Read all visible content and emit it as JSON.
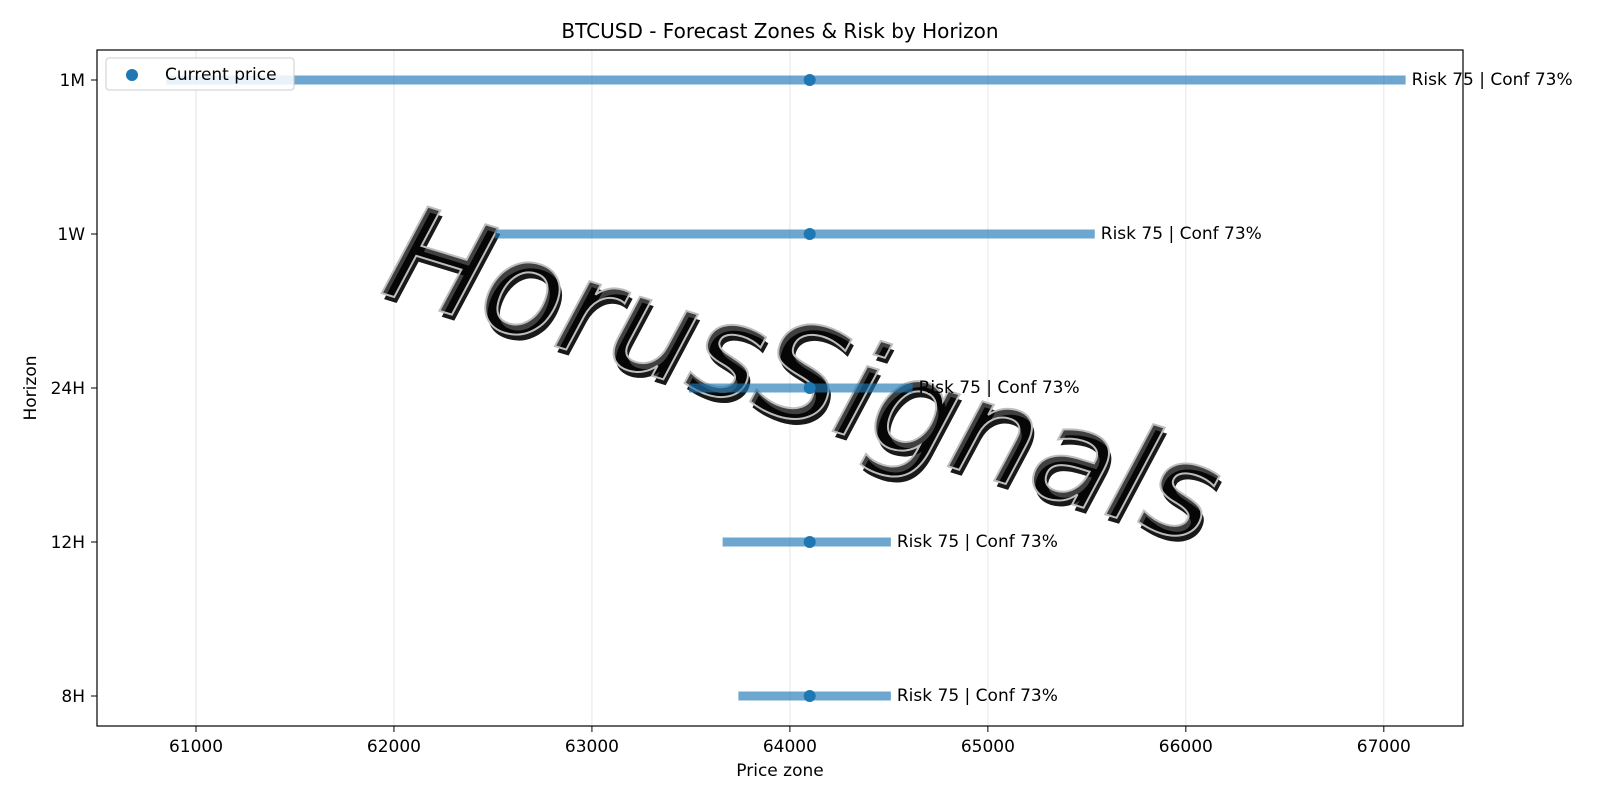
{
  "chart_data": {
    "type": "range",
    "title": "BTCUSD - Forecast Zones & Risk by Horizon",
    "xlabel": "Price zone",
    "ylabel": "Horizon",
    "xlim": [
      60500,
      67400
    ],
    "x_ticks": [
      61000,
      62000,
      63000,
      64000,
      65000,
      66000,
      67000
    ],
    "grid": "vertical",
    "legend": {
      "position": "top-left",
      "label": "Current price"
    },
    "current_price": 64100,
    "series_color": "#1f77b4",
    "categories": [
      "8H",
      "12H",
      "24H",
      "1W",
      "1M"
    ],
    "ranges": [
      {
        "horizon": "8H",
        "low": 63740,
        "high": 64510,
        "annotation": "Risk 75 | Conf 73%"
      },
      {
        "horizon": "12H",
        "low": 63660,
        "high": 64510,
        "annotation": "Risk 75 | Conf 73%"
      },
      {
        "horizon": "24H",
        "low": 63490,
        "high": 64620,
        "annotation": "Risk 75 | Conf 73%"
      },
      {
        "horizon": "1W",
        "low": 62510,
        "high": 65540,
        "annotation": "Risk 75 | Conf 73%"
      },
      {
        "horizon": "1M",
        "low": 60850,
        "high": 67110,
        "annotation": "Risk 75 | Conf 73%"
      }
    ],
    "watermark": "HorusSignals"
  }
}
